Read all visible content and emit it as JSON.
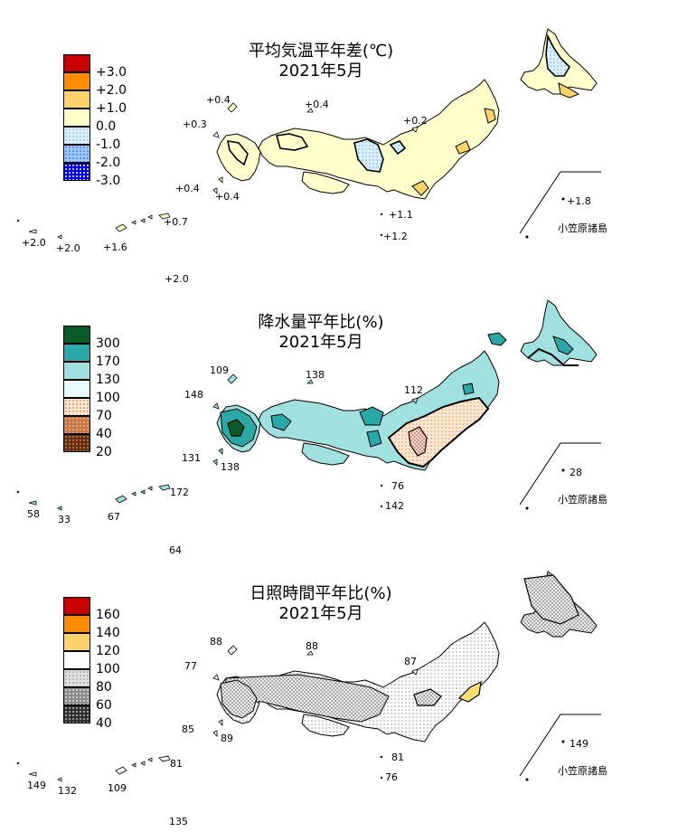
{
  "panels": [
    {
      "title_line1": "平均気温平年差(℃)",
      "title_line2": "2021年5月",
      "legend": [
        "+3.0",
        "+2.0",
        "+1.0",
        "0.0",
        "-1.0",
        "-2.0",
        "-3.0"
      ],
      "legend_colors": [
        "#c80000",
        "#ff8c00",
        "#ffd36b",
        "#ffffc8",
        "#d8f0ff",
        "#9cc8ff",
        "#0000dd"
      ],
      "region_colors": {
        "base": "#ffffcc",
        "warm": "#ffd36b",
        "cool": "#d8f0ff"
      },
      "values": {
        "v_nw_island": "+0.4",
        "v_sea_island": "+0.4",
        "v_west": "+0.3",
        "v_north_tohoku": "+0.2",
        "v_goto": "+0.4",
        "v_koshiki": "+0.4",
        "v_izu1": "+1.1",
        "v_izu2": "+1.2",
        "v_tanegashima": "+0.7",
        "v_yonaguni": "+2.0",
        "v_ishigaki": "+2.0",
        "v_okinawa": "+1.6",
        "v_daito": "+2.0",
        "v_ogasawara": "+1.8"
      },
      "ogasawara_label": "小笠原諸島"
    },
    {
      "title_line1": "降水量平年比(%)",
      "title_line2": "2021年5月",
      "legend": [
        "300",
        "170",
        "130",
        "100",
        "70",
        "40",
        "20"
      ],
      "legend_colors": [
        "#0b5a2a",
        "#2aa8a8",
        "#a0e0e0",
        "#e8fcfc",
        "#ffe8d0",
        "#c87844",
        "#603010"
      ],
      "region_colors": {
        "base": "#a0e0e0",
        "wet": "#2aa8a8",
        "dry": "#ffe8d0",
        "very_wet": "#0b5a2a"
      },
      "values": {
        "v_nw_island": "109",
        "v_sea_island": "138",
        "v_west": "148",
        "v_north_tohoku": "112",
        "v_goto": "131",
        "v_koshiki": "138",
        "v_izu1": "76",
        "v_izu2": "142",
        "v_tanegashima": "172",
        "v_yonaguni": "58",
        "v_ishigaki": "33",
        "v_okinawa": "67",
        "v_daito": "64",
        "v_ogasawara": "28"
      },
      "ogasawara_label": "小笠原諸島"
    },
    {
      "title_line1": "日照時間平年比(%)",
      "title_line2": "2021年5月",
      "legend": [
        "160",
        "140",
        "120",
        "100",
        "80",
        "60",
        "40"
      ],
      "legend_colors": [
        "#c80000",
        "#ff8c00",
        "#ffd36b",
        "#ffffff",
        "#e0e0e0",
        "#8c8c8c",
        "#303030"
      ],
      "region_colors": {
        "base": "#ffffff",
        "low": "#d0d0d0",
        "high": "#ffe070"
      },
      "values": {
        "v_nw_island": "88",
        "v_sea_island": "88",
        "v_west": "77",
        "v_north_tohoku": "87",
        "v_goto": "85",
        "v_koshiki": "89",
        "v_izu1": "81",
        "v_izu2": "76",
        "v_tanegashima": "81",
        "v_yonaguni": "149",
        "v_ishigaki": "132",
        "v_okinawa": "109",
        "v_daito": "135",
        "v_ogasawara": "149"
      },
      "ogasawara_label": "小笠原諸島"
    }
  ]
}
